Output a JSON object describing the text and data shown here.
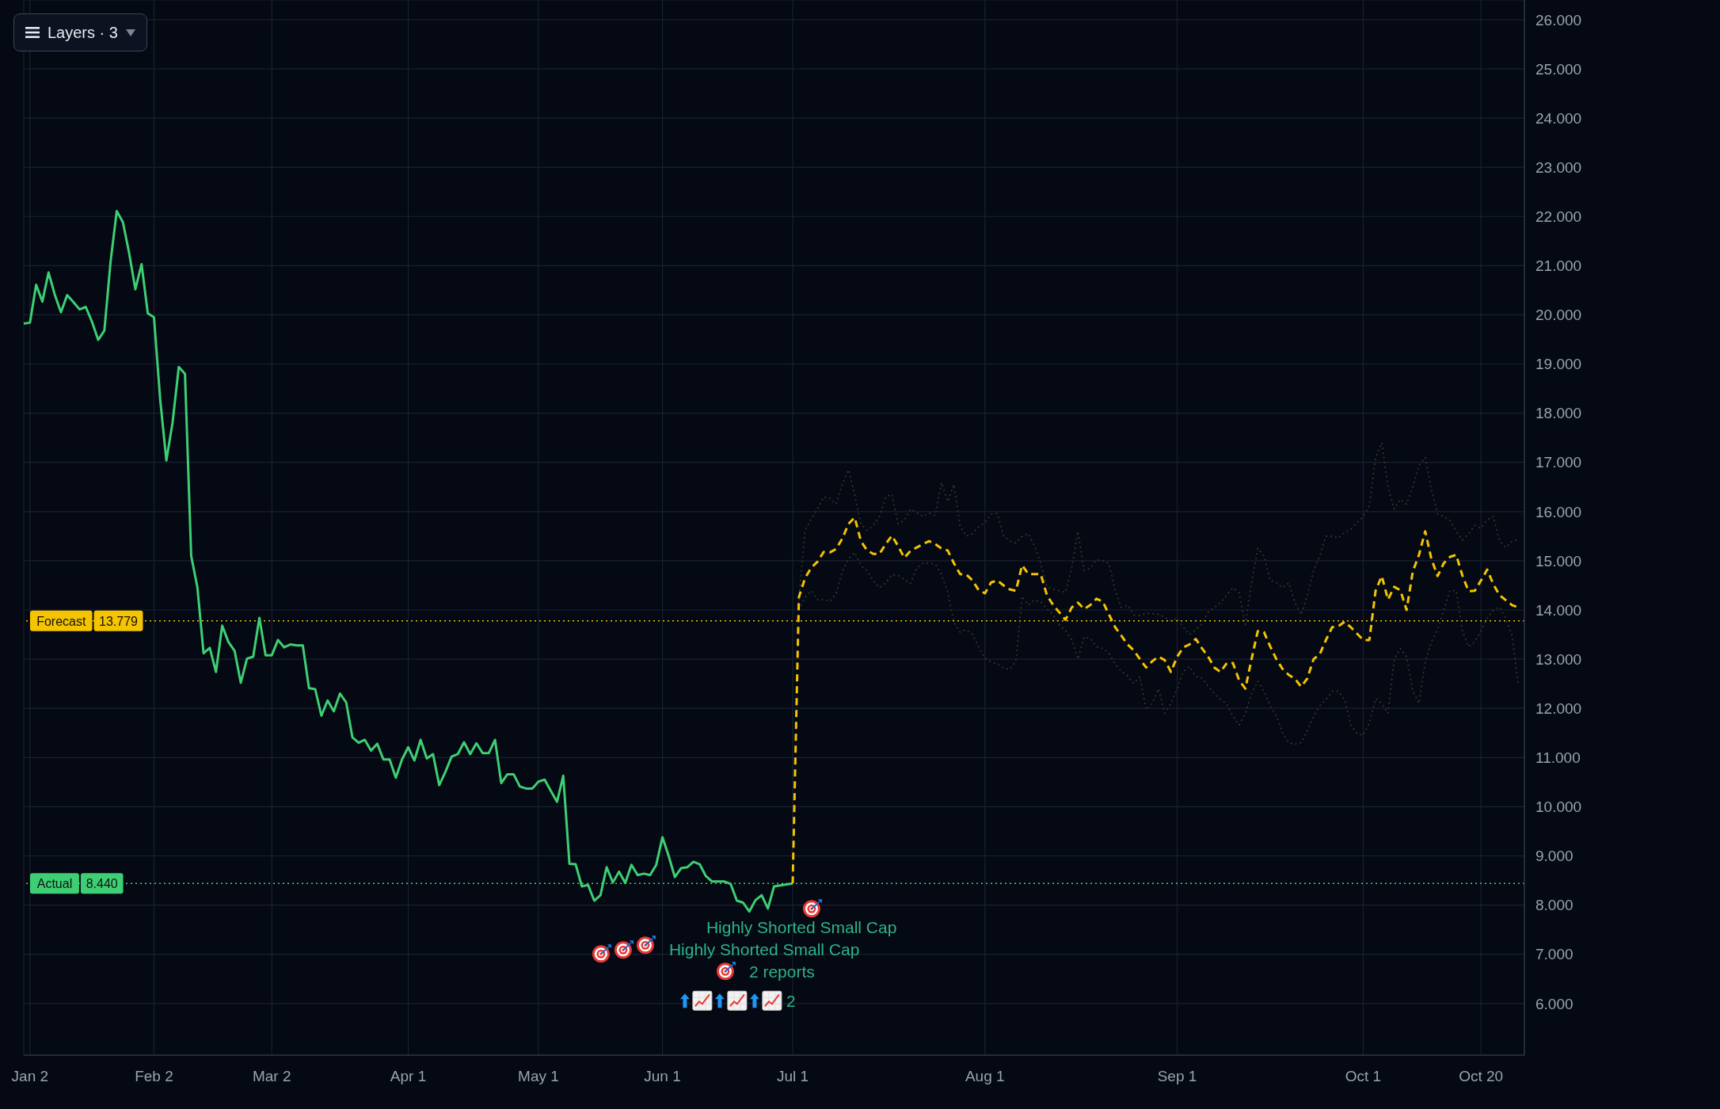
{
  "chart_data": {
    "type": "line",
    "categories": [
      null,
      "Jan 2",
      null,
      null,
      null,
      null,
      null,
      null,
      null,
      null,
      null,
      null,
      null,
      null,
      null,
      null,
      null,
      null,
      null,
      null,
      null,
      "Feb 2",
      null,
      null,
      null,
      null,
      null,
      null,
      null,
      null,
      null,
      null,
      null,
      null,
      null,
      null,
      null,
      null,
      null,
      null,
      "Mar 2",
      null,
      null,
      null,
      null,
      null,
      null,
      null,
      null,
      null,
      null,
      null,
      null,
      null,
      null,
      null,
      null,
      null,
      null,
      null,
      null,
      null,
      "Apr 1",
      null,
      null,
      null,
      null,
      null,
      null,
      null,
      null,
      null,
      null,
      null,
      null,
      null,
      null,
      null,
      null,
      null,
      null,
      null,
      null,
      "May 1",
      null,
      null,
      null,
      null,
      null,
      null,
      null,
      null,
      null,
      null,
      null,
      null,
      null,
      null,
      null,
      null,
      null,
      null,
      null,
      "Jun 1",
      null,
      null,
      null,
      null,
      null,
      null,
      null,
      null,
      null,
      null,
      null,
      null,
      null,
      null,
      null,
      null,
      null,
      null,
      null,
      null,
      "Jul 1",
      null,
      null,
      null,
      null,
      null,
      null,
      null,
      null,
      null,
      null,
      null,
      null,
      null,
      null,
      null,
      null,
      null,
      null,
      null,
      null,
      null,
      null,
      null,
      null,
      null,
      null,
      null,
      null,
      null,
      null,
      "Aug 1",
      null,
      null,
      null,
      null,
      null,
      null,
      null,
      null,
      null,
      null,
      null,
      null,
      null,
      null,
      null,
      null,
      null,
      null,
      null,
      null,
      null,
      null,
      null,
      null,
      null,
      null,
      null,
      null,
      null,
      null,
      "Sep 1",
      null,
      null,
      null,
      null,
      null,
      null,
      null,
      null,
      null,
      null,
      null,
      null,
      null,
      null,
      null,
      null,
      null,
      null,
      null,
      null,
      null,
      null,
      null,
      null,
      null,
      null,
      null,
      null,
      null,
      "Oct 1",
      null,
      null,
      null,
      null,
      null,
      null,
      null,
      null,
      null,
      null,
      null,
      null,
      null,
      null,
      null,
      null,
      null,
      null,
      "Oct 20",
      null,
      null,
      null,
      null,
      null,
      null,
      null
    ],
    "ylim": [
      4.95,
      26.4
    ],
    "yticks": [
      {
        "value": 6,
        "label": "6.000"
      },
      {
        "value": 7,
        "label": "7.000"
      },
      {
        "value": 8,
        "label": "8.000"
      },
      {
        "value": 9,
        "label": "9.000"
      },
      {
        "value": 10,
        "label": "10.000"
      },
      {
        "value": 11,
        "label": "11.000"
      },
      {
        "value": 12,
        "label": "12.000"
      },
      {
        "value": 13,
        "label": "13.000"
      },
      {
        "value": 14,
        "label": "14.000"
      },
      {
        "value": 15,
        "label": "15.000"
      },
      {
        "value": 16,
        "label": "16.000"
      },
      {
        "value": 17,
        "label": "17.000"
      },
      {
        "value": 18,
        "label": "18.000"
      },
      {
        "value": 19,
        "label": "19.000"
      },
      {
        "value": 20,
        "label": "20.000"
      },
      {
        "value": 21,
        "label": "21.000"
      },
      {
        "value": 22,
        "label": "22.000"
      },
      {
        "value": 23,
        "label": "23.000"
      },
      {
        "value": 24,
        "label": "24.000"
      },
      {
        "value": 25,
        "label": "25.000"
      },
      {
        "value": 26,
        "label": "26.000"
      }
    ],
    "grid": true,
    "series": [
      {
        "color": "#3b3a2e",
        "line_style": "dotted",
        "values": [
          null,
          null,
          null,
          null,
          null,
          null,
          null,
          null,
          null,
          null,
          null,
          null,
          null,
          null,
          null,
          null,
          null,
          null,
          null,
          null,
          null,
          null,
          null,
          null,
          null,
          null,
          null,
          null,
          null,
          null,
          null,
          null,
          null,
          null,
          null,
          null,
          null,
          null,
          null,
          null,
          null,
          null,
          null,
          null,
          null,
          null,
          null,
          null,
          null,
          null,
          null,
          null,
          null,
          null,
          null,
          null,
          null,
          null,
          null,
          null,
          null,
          null,
          null,
          null,
          null,
          null,
          null,
          null,
          null,
          null,
          null,
          null,
          null,
          null,
          null,
          null,
          null,
          null,
          null,
          null,
          null,
          null,
          null,
          null,
          null,
          null,
          null,
          null,
          null,
          null,
          null,
          null,
          null,
          null,
          null,
          null,
          null,
          null,
          null,
          null,
          null,
          null,
          null,
          null,
          null,
          null,
          null,
          null,
          null,
          null,
          null,
          null,
          null,
          null,
          null,
          null,
          null,
          null,
          null,
          null,
          null,
          null,
          null,
          null,
          null,
          14.2,
          15.62,
          15.85,
          16.05,
          16.3,
          16.27,
          16.15,
          16.55,
          16.85,
          16.35,
          15.75,
          15.62,
          15.72,
          15.9,
          16.3,
          16.35,
          15.75,
          15.82,
          16.05,
          15.98,
          15.9,
          15.97,
          15.92,
          16.59,
          16.2,
          16.55,
          15.7,
          15.5,
          15.55,
          15.69,
          15.77,
          15.95,
          15.96,
          15.5,
          15.4,
          15.36,
          15.5,
          15.55,
          15.3,
          14.95,
          14.47,
          14.42,
          14.39,
          14.36,
          14.86,
          15.6,
          14.8,
          14.85,
          15.02,
          15.0,
          14.95,
          14.4,
          14.05,
          14.1,
          13.9,
          13.89,
          13.93,
          13.93,
          13.91,
          13.85,
          13.78,
          13.83,
          13.65,
          13.5,
          13.6,
          13.72,
          13.95,
          14.05,
          14.15,
          14.3,
          14.45,
          14.35,
          13.7,
          14.55,
          15.25,
          15.1,
          14.6,
          14.56,
          14.45,
          14.55,
          14.15,
          13.9,
          14.3,
          14.8,
          15.1,
          15.5,
          15.5,
          15.46,
          15.58,
          15.64,
          15.77,
          15.9,
          16.12,
          17.1,
          17.4,
          16.5,
          16.05,
          16.25,
          16.15,
          16.5,
          16.94,
          17.1,
          16.45,
          15.95,
          15.9,
          15.82,
          15.6,
          15.42,
          15.55,
          15.72,
          15.66,
          15.84,
          15.9,
          15.4,
          15.27,
          15.4,
          15.43,
          null
        ]
      },
      {
        "color": "#3b3a2e",
        "line_style": "dotted",
        "values": [
          null,
          null,
          null,
          null,
          null,
          null,
          null,
          null,
          null,
          null,
          null,
          null,
          null,
          null,
          null,
          null,
          null,
          null,
          null,
          null,
          null,
          null,
          null,
          null,
          null,
          null,
          null,
          null,
          null,
          null,
          null,
          null,
          null,
          null,
          null,
          null,
          null,
          null,
          null,
          null,
          null,
          null,
          null,
          null,
          null,
          null,
          null,
          null,
          null,
          null,
          null,
          null,
          null,
          null,
          null,
          null,
          null,
          null,
          null,
          null,
          null,
          null,
          null,
          null,
          null,
          null,
          null,
          null,
          null,
          null,
          null,
          null,
          null,
          null,
          null,
          null,
          null,
          null,
          null,
          null,
          null,
          null,
          null,
          null,
          null,
          null,
          null,
          null,
          null,
          null,
          null,
          null,
          null,
          null,
          null,
          null,
          null,
          null,
          null,
          null,
          null,
          null,
          null,
          null,
          null,
          null,
          null,
          null,
          null,
          null,
          null,
          null,
          null,
          null,
          null,
          null,
          null,
          null,
          null,
          null,
          null,
          null,
          null,
          null,
          null,
          14.0,
          14.26,
          14.39,
          14.21,
          14.21,
          14.17,
          14.34,
          14.78,
          15.04,
          15.17,
          14.9,
          14.8,
          14.6,
          14.45,
          14.55,
          14.72,
          14.7,
          14.62,
          14.54,
          14.85,
          14.95,
          14.95,
          14.93,
          14.72,
          14.36,
          13.75,
          13.55,
          13.6,
          13.5,
          13.25,
          13.02,
          12.94,
          12.9,
          12.82,
          12.79,
          12.96,
          14.28,
          14.1,
          14.2,
          14.17,
          14.02,
          13.9,
          13.7,
          13.58,
          13.4,
          13.0,
          13.45,
          13.42,
          13.25,
          13.22,
          13.12,
          12.9,
          12.75,
          12.66,
          12.5,
          12.65,
          11.97,
          12.1,
          12.4,
          11.9,
          12.1,
          12.4,
          12.75,
          12.85,
          12.65,
          12.62,
          12.45,
          12.3,
          12.18,
          12.09,
          11.84,
          11.66,
          11.9,
          12.3,
          12.55,
          12.35,
          12.05,
          11.85,
          11.5,
          11.3,
          11.27,
          11.3,
          11.55,
          11.84,
          12.05,
          12.18,
          12.35,
          12.35,
          12.18,
          11.66,
          11.49,
          11.45,
          11.7,
          12.2,
          12.1,
          11.9,
          13.0,
          13.22,
          13.05,
          12.35,
          12.1,
          12.95,
          13.35,
          13.6,
          14.0,
          14.4,
          14.39,
          13.57,
          13.25,
          13.35,
          13.57,
          13.83,
          14.0,
          14.06,
          13.83,
          13.48,
          12.5,
          null
        ]
      },
      {
        "color": "#3ecf74",
        "line_style": "solid",
        "values": [
          19.82,
          19.84,
          20.61,
          20.27,
          20.86,
          20.41,
          20.05,
          20.4,
          20.26,
          20.11,
          20.16,
          19.86,
          19.49,
          19.68,
          21.08,
          22.11,
          21.88,
          21.25,
          20.52,
          21.03,
          20.03,
          19.95,
          18.28,
          17.04,
          17.81,
          18.94,
          18.8,
          15.1,
          14.46,
          13.12,
          13.23,
          12.74,
          13.68,
          13.35,
          13.17,
          12.52,
          13.01,
          13.05,
          13.84,
          13.08,
          13.08,
          13.39,
          13.24,
          13.3,
          13.28,
          13.28,
          12.41,
          12.39,
          11.85,
          12.16,
          11.94,
          12.3,
          12.12,
          11.41,
          11.3,
          11.36,
          11.14,
          11.28,
          10.96,
          10.96,
          10.59,
          10.96,
          11.21,
          10.94,
          11.36,
          10.98,
          11.07,
          10.44,
          10.71,
          11.02,
          11.07,
          11.31,
          11.07,
          11.29,
          11.09,
          11.09,
          11.36,
          10.48,
          10.66,
          10.66,
          10.41,
          10.37,
          10.37,
          10.51,
          10.55,
          10.32,
          10.1,
          10.63,
          8.84,
          8.83,
          8.38,
          8.41,
          8.09,
          8.2,
          8.77,
          8.46,
          8.68,
          8.45,
          8.82,
          8.61,
          8.64,
          8.61,
          8.82,
          9.38,
          9.0,
          8.57,
          8.75,
          8.77,
          8.88,
          8.83,
          8.59,
          8.48,
          8.48,
          8.48,
          8.43,
          8.09,
          8.05,
          7.87,
          8.1,
          8.2,
          7.93,
          8.38,
          8.4,
          8.42,
          8.44,
          null,
          null,
          null,
          null,
          null,
          null,
          null,
          null,
          null,
          null,
          null,
          null,
          null,
          null,
          null,
          null,
          null,
          null,
          null,
          null,
          null,
          null,
          null,
          null,
          null,
          null,
          null,
          null,
          null,
          null,
          null,
          null,
          null,
          null,
          null,
          null,
          null,
          null,
          null,
          null,
          null,
          null,
          null,
          null,
          null,
          null,
          null,
          null,
          null,
          null,
          null,
          null,
          null,
          null,
          null,
          null,
          null,
          null,
          null,
          null,
          null,
          null,
          null,
          null,
          null,
          null,
          null,
          null,
          null,
          null,
          null,
          null,
          null,
          null,
          null,
          null,
          null,
          null,
          null,
          null,
          null,
          null,
          null,
          null,
          null,
          null,
          null,
          null,
          null,
          null,
          null,
          null,
          null,
          null,
          null,
          null,
          null,
          null,
          null,
          null,
          null,
          null,
          null,
          null,
          null,
          null,
          null,
          null,
          null,
          null,
          null,
          null,
          null,
          null,
          null,
          null,
          null,
          null
        ]
      },
      {
        "color": "#f5c400",
        "line_style": "dashed",
        "values": [
          null,
          null,
          null,
          null,
          null,
          null,
          null,
          null,
          null,
          null,
          null,
          null,
          null,
          null,
          null,
          null,
          null,
          null,
          null,
          null,
          null,
          null,
          null,
          null,
          null,
          null,
          null,
          null,
          null,
          null,
          null,
          null,
          null,
          null,
          null,
          null,
          null,
          null,
          null,
          null,
          null,
          null,
          null,
          null,
          null,
          null,
          null,
          null,
          null,
          null,
          null,
          null,
          null,
          null,
          null,
          null,
          null,
          null,
          null,
          null,
          null,
          null,
          null,
          null,
          null,
          null,
          null,
          null,
          null,
          null,
          null,
          null,
          null,
          null,
          null,
          null,
          null,
          null,
          null,
          null,
          null,
          null,
          null,
          null,
          null,
          null,
          null,
          null,
          null,
          null,
          null,
          null,
          null,
          null,
          null,
          null,
          null,
          null,
          null,
          null,
          null,
          null,
          null,
          null,
          null,
          null,
          null,
          null,
          null,
          null,
          null,
          null,
          null,
          null,
          null,
          null,
          null,
          null,
          null,
          null,
          null,
          null,
          null,
          null,
          8.44,
          14.26,
          14.65,
          14.86,
          14.98,
          15.18,
          15.17,
          15.24,
          15.45,
          15.75,
          15.88,
          15.4,
          15.21,
          15.14,
          15.14,
          15.34,
          15.51,
          15.3,
          15.06,
          15.2,
          15.27,
          15.34,
          15.4,
          15.34,
          15.25,
          15.21,
          14.95,
          14.73,
          14.72,
          14.6,
          14.4,
          14.34,
          14.56,
          14.6,
          14.5,
          14.42,
          14.39,
          14.91,
          14.73,
          14.73,
          14.73,
          14.3,
          14.1,
          13.95,
          13.8,
          14.05,
          14.15,
          14.02,
          14.1,
          14.23,
          14.17,
          13.91,
          13.65,
          13.48,
          13.3,
          13.18,
          13.0,
          12.83,
          12.96,
          13.05,
          12.98,
          12.74,
          13.05,
          13.24,
          13.3,
          13.41,
          13.22,
          13.05,
          12.83,
          12.74,
          12.92,
          12.92,
          12.57,
          12.4,
          13.0,
          13.57,
          13.55,
          13.26,
          13.0,
          12.8,
          12.68,
          12.6,
          12.44,
          12.61,
          13.0,
          13.1,
          13.39,
          13.65,
          13.67,
          13.76,
          13.65,
          13.52,
          13.39,
          13.39,
          14.39,
          14.69,
          14.21,
          14.47,
          14.4,
          14.0,
          14.78,
          15.12,
          15.6,
          15.04,
          14.69,
          14.95,
          15.08,
          15.12,
          14.7,
          14.38,
          14.39,
          14.6,
          14.82,
          14.52,
          14.3,
          14.2,
          14.1,
          14.05,
          null
        ]
      }
    ],
    "ref_lines": [
      {
        "axis": "y",
        "value": 13.779,
        "label": "Forecast",
        "color": "#f5c400",
        "line_style": "dotted"
      },
      {
        "axis": "y",
        "value": 8.44,
        "label": "Actual",
        "color": "#3ecf74",
        "line_style": "dotted"
      }
    ],
    "annotations": [
      "Layers · 3",
      "Highly Shorted Small Cap",
      "Highly Shorted Small Cap",
      "2 reports",
      "2",
      {
        "text": "13.779",
        "y": 13.779
      },
      {
        "text": "8.440",
        "y": 8.44
      }
    ]
  }
}
